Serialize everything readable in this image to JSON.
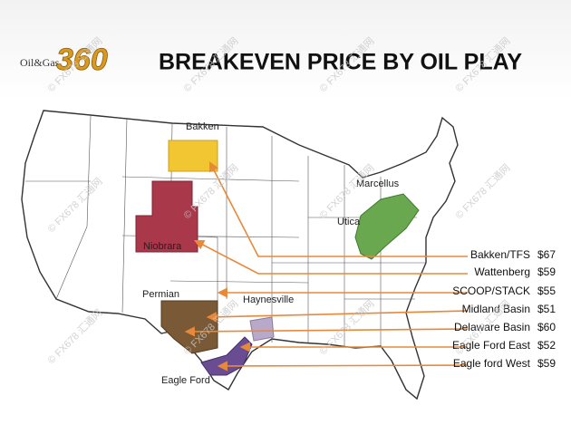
{
  "logo": {
    "brand": "Oil&Gas",
    "number": "360"
  },
  "title": "BREAKEVEN PRICE BY OIL PLAY",
  "watermark": "© FX678 汇通网",
  "regions": [
    "Bakken",
    "Marcellus",
    "Utica",
    "Niobrara",
    "Permian",
    "Haynesville",
    "Eagle Ford"
  ],
  "plays": [
    {
      "name": "Bakken/TFS",
      "price": "$67"
    },
    {
      "name": "Wattenberg",
      "price": "$59"
    },
    {
      "name": "SCOOP/STACK",
      "price": "$55"
    },
    {
      "name": "Midland Basin",
      "price": "$51"
    },
    {
      "name": "Delaware Basin",
      "price": "$60"
    },
    {
      "name": "Eagle Ford East",
      "price": "$52"
    },
    {
      "name": "Eagle ford West",
      "price": "$59"
    }
  ]
}
